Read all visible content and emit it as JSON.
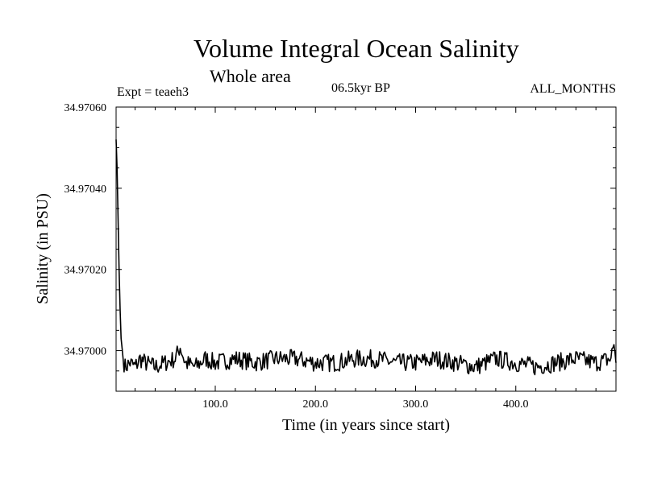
{
  "chart_data": {
    "type": "line",
    "title": "Volume Integral Ocean Salinity",
    "subtitle": "Whole area",
    "experiment": "Expt = teaeh3",
    "period": "06.5kyr BP",
    "months": "ALL_MONTHS",
    "xlabel": "Time (in years since start)",
    "ylabel": "Salinity (in PSU)",
    "xlim": [
      1,
      500
    ],
    "ylim": [
      34.9699,
      34.9706
    ],
    "xticks": [
      100,
      200,
      300,
      400
    ],
    "xtick_labels": [
      "100.0",
      "200.0",
      "300.0",
      "400.0"
    ],
    "yticks": [
      34.97,
      34.9702,
      34.9704,
      34.9706
    ],
    "ytick_labels": [
      "34.97000",
      "34.97020",
      "34.97040",
      "34.97060"
    ],
    "grid": false,
    "series": [
      {
        "name": "Salinity",
        "x": [
          1,
          2,
          3,
          4,
          5,
          6,
          8,
          10,
          15,
          20,
          25,
          30,
          40,
          50,
          60,
          65,
          70,
          80,
          90,
          100,
          120,
          140,
          160,
          180,
          200,
          220,
          240,
          260,
          280,
          300,
          320,
          340,
          360,
          380,
          400,
          420,
          440,
          460,
          480,
          495,
          498,
          500
        ],
        "values": [
          34.97052,
          34.97045,
          34.97032,
          34.9702,
          34.9701,
          34.97003,
          34.96998,
          34.96996,
          34.96997,
          34.96996,
          34.96998,
          34.96997,
          34.96996,
          34.96997,
          34.96998,
          34.97001,
          34.96997,
          34.96996,
          34.96998,
          34.96997,
          34.96998,
          34.96997,
          34.96998,
          34.96998,
          34.96997,
          34.96997,
          34.96998,
          34.96998,
          34.96997,
          34.96997,
          34.96998,
          34.96997,
          34.96996,
          34.96998,
          34.96997,
          34.96996,
          34.96997,
          34.96998,
          34.96997,
          34.96998,
          34.97002,
          34.96997
        ]
      }
    ]
  }
}
